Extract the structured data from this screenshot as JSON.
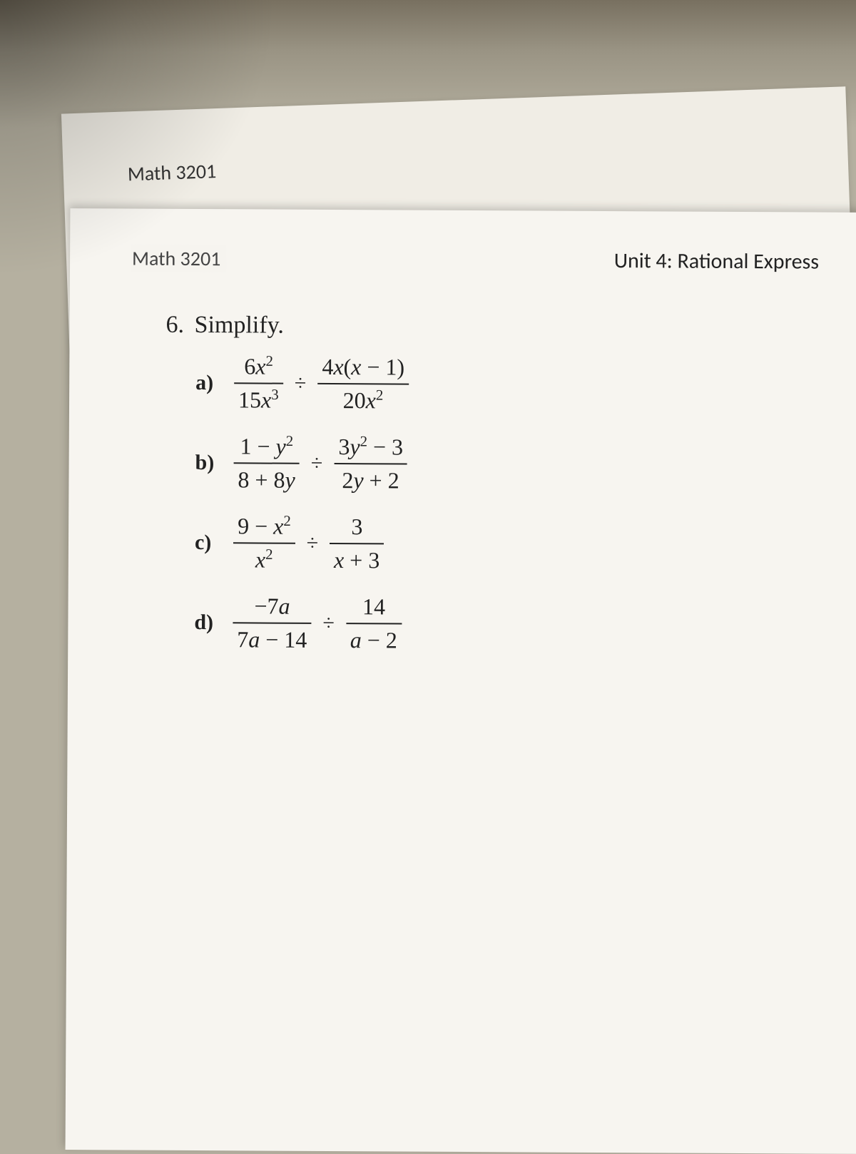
{
  "background": {
    "desk_color": "#b5b0a0",
    "page_color": "#f7f5f0",
    "back_page_color": "#f0ede5"
  },
  "back_page": {
    "course": "Math 3201"
  },
  "front_page": {
    "course": "Math 3201",
    "unit": "Unit 4: Rational Express",
    "question_number": "6.",
    "question_instruction": "Simplify.",
    "parts": {
      "a": {
        "label": "a)",
        "left_num": "6x²",
        "left_den": "15x³",
        "operator": "÷",
        "right_num": "4x(x − 1)",
        "right_den": "20x²"
      },
      "b": {
        "label": "b)",
        "left_num": "1 − y²",
        "left_den": "8 + 8y",
        "operator": "÷",
        "right_num": "3y² − 3",
        "right_den": "2y + 2"
      },
      "c": {
        "label": "c)",
        "left_num": "9 − x²",
        "left_den": "x²",
        "operator": "÷",
        "right_num": "3",
        "right_den": "x + 3"
      },
      "d": {
        "label": "d)",
        "left_num": "−7a",
        "left_den": "7a − 14",
        "operator": "÷",
        "right_num": "14",
        "right_den": "a − 2"
      }
    }
  },
  "typography": {
    "heading_font": "Calibri",
    "math_font": "Times New Roman",
    "course_fontsize": 28,
    "unit_fontsize": 30,
    "question_fontsize": 34,
    "part_fontsize": 32,
    "text_color": "#222"
  }
}
